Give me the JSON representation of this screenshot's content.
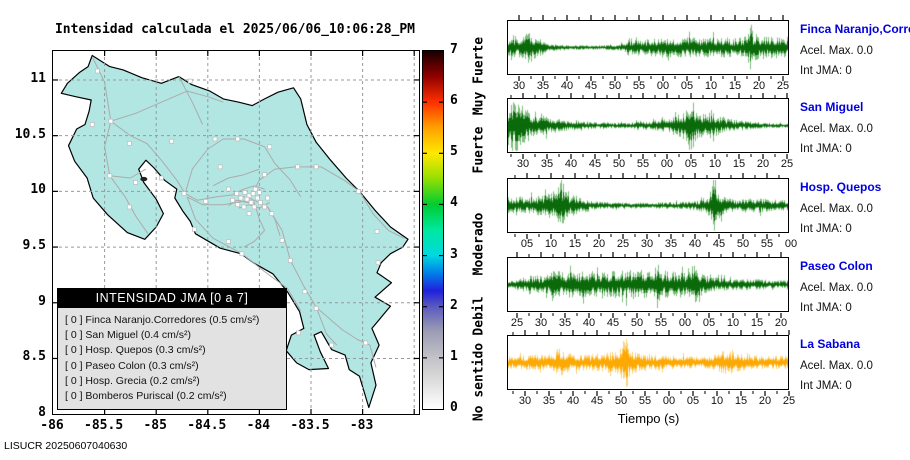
{
  "title": "Intensidad calculada el 2025/06/06_10:06:28_PM",
  "footer": "LISUCR 20250607040630",
  "map": {
    "x_ticks": [
      "-86",
      "-85.5",
      "-85",
      "-84.5",
      "-84",
      "-83.5",
      "-83"
    ],
    "y_ticks": [
      "8",
      "8.5",
      "9",
      "9.5",
      "10",
      "10.5",
      "11"
    ],
    "land_color": "#b2e6e2",
    "legend": {
      "title": "INTENSIDAD JMA [0 a 7]",
      "items": [
        "[ 0 ]  Finca Naranjo.Corredores (0.5 cm/s²)",
        "[ 0 ]  San Miguel (0.4 cm/s²)",
        "[ 0 ]  Hosp. Quepos (0.3 cm/s²)",
        "[ 0 ]  Paseo Colon (0.3 cm/s²)",
        "[ 0 ]  Hosp. Grecia (0.2 cm/s²)",
        "[ 0 ]  Bomberos Puriscal (0.2 cm/s²)"
      ]
    }
  },
  "colorbar": {
    "ticks": [
      "0",
      "1",
      "2",
      "3",
      "4",
      "5",
      "6",
      "7"
    ],
    "categories": [
      {
        "label": "No sentido",
        "value": 0.5
      },
      {
        "label": "Debil",
        "value": 1.8
      },
      {
        "label": "Moderado",
        "value": 3.2
      },
      {
        "label": "Fuerte",
        "value": 5.05
      },
      {
        "label": "Muy Fuerte",
        "value": 6.5
      }
    ]
  },
  "chart_data": {
    "type": "seismogram-panels",
    "xlabel": "Tiempo (s)",
    "map_axis": {
      "lon_range": [
        -86.0,
        -82.45
      ],
      "lat_range": [
        8.0,
        11.26
      ],
      "grid": true
    },
    "intensity_scale": {
      "min": 0,
      "max": 7
    },
    "panels": [
      {
        "station": "Finca Naranjo,Corredor",
        "accel_label": "Acel. Max. 0.0",
        "int_label": "Int JMA: 0",
        "color": "#0b6b0b",
        "color_light": "#7fbd7f",
        "seed": 101,
        "tick_offset": 12,
        "x_ticks": [
          "30",
          "35",
          "40",
          "45",
          "50",
          "55",
          "00",
          "05",
          "10",
          "15",
          "20",
          "25"
        ],
        "envelope": [
          [
            0,
            0.32
          ],
          [
            0.015,
            0.55
          ],
          [
            0.03,
            0.38
          ],
          [
            0.05,
            0.45
          ],
          [
            0.07,
            0.62
          ],
          [
            0.085,
            0.48
          ],
          [
            0.1,
            0.4
          ],
          [
            0.12,
            0.28
          ],
          [
            0.14,
            0.14
          ],
          [
            0.2,
            0.09
          ],
          [
            0.3,
            0.08
          ],
          [
            0.4,
            0.1
          ],
          [
            0.425,
            0.3
          ],
          [
            0.45,
            0.35
          ],
          [
            0.48,
            0.28
          ],
          [
            0.52,
            0.32
          ],
          [
            0.56,
            0.38
          ],
          [
            0.6,
            0.33
          ],
          [
            0.64,
            0.38
          ],
          [
            0.68,
            0.32
          ],
          [
            0.72,
            0.36
          ],
          [
            0.76,
            0.38
          ],
          [
            0.8,
            0.33
          ],
          [
            0.83,
            0.38
          ],
          [
            0.858,
            0.4
          ],
          [
            0.868,
            1.0
          ],
          [
            0.878,
            0.48
          ],
          [
            0.9,
            0.45
          ],
          [
            0.94,
            0.4
          ],
          [
            1,
            0.38
          ]
        ]
      },
      {
        "station": "San Miguel",
        "accel_label": "Acel. Max. 0.0",
        "int_label": "Int JMA: 0",
        "color": "#0b6b0b",
        "color_light": "#7fbd7f",
        "seed": 202,
        "tick_offset": 16,
        "x_ticks": [
          "30",
          "35",
          "40",
          "45",
          "50",
          "55",
          "00",
          "05",
          "10",
          "15",
          "20",
          "25"
        ],
        "envelope": [
          [
            0,
            0.7
          ],
          [
            0.01,
            1.0
          ],
          [
            0.03,
            0.92
          ],
          [
            0.05,
            0.7
          ],
          [
            0.08,
            0.5
          ],
          [
            0.11,
            0.38
          ],
          [
            0.15,
            0.28
          ],
          [
            0.2,
            0.2
          ],
          [
            0.28,
            0.14
          ],
          [
            0.36,
            0.11
          ],
          [
            0.44,
            0.1
          ],
          [
            0.47,
            0.18
          ],
          [
            0.5,
            0.12
          ],
          [
            0.54,
            0.22
          ],
          [
            0.58,
            0.3
          ],
          [
            0.61,
            0.4
          ],
          [
            0.635,
            0.55
          ],
          [
            0.655,
            1.0
          ],
          [
            0.675,
            0.5
          ],
          [
            0.7,
            0.42
          ],
          [
            0.73,
            0.45
          ],
          [
            0.76,
            0.3
          ],
          [
            0.8,
            0.22
          ],
          [
            0.85,
            0.16
          ],
          [
            0.9,
            0.12
          ],
          [
            0.95,
            0.09
          ],
          [
            1,
            0.08
          ]
        ]
      },
      {
        "station": "Hosp. Quepos",
        "accel_label": "Acel. Max. 0.0",
        "int_label": "Int JMA: 0",
        "color": "#0b6b0b",
        "color_light": "#7fbd7f",
        "seed": 303,
        "tick_offset": 20,
        "x_ticks": [
          "05",
          "10",
          "15",
          "20",
          "25",
          "30",
          "35",
          "40",
          "45",
          "50",
          "55",
          "00"
        ],
        "envelope": [
          [
            0,
            0.3
          ],
          [
            0.03,
            0.35
          ],
          [
            0.06,
            0.28
          ],
          [
            0.09,
            0.32
          ],
          [
            0.12,
            0.4
          ],
          [
            0.15,
            0.45
          ],
          [
            0.175,
            0.55
          ],
          [
            0.19,
            1.0
          ],
          [
            0.205,
            0.6
          ],
          [
            0.22,
            0.45
          ],
          [
            0.25,
            0.35
          ],
          [
            0.28,
            0.22
          ],
          [
            0.32,
            0.14
          ],
          [
            0.38,
            0.11
          ],
          [
            0.45,
            0.1
          ],
          [
            0.52,
            0.11
          ],
          [
            0.58,
            0.13
          ],
          [
            0.64,
            0.15
          ],
          [
            0.68,
            0.18
          ],
          [
            0.715,
            0.3
          ],
          [
            0.735,
            1.0
          ],
          [
            0.755,
            0.45
          ],
          [
            0.78,
            0.28
          ],
          [
            0.82,
            0.2
          ],
          [
            0.86,
            0.22
          ],
          [
            0.9,
            0.26
          ],
          [
            0.95,
            0.2
          ],
          [
            1,
            0.22
          ]
        ]
      },
      {
        "station": "Paseo Colon",
        "accel_label": "Acel. Max. 0.0",
        "int_label": "Int JMA: 0",
        "color": "#0b6b0b",
        "color_light": "#7fbd7f",
        "seed": 404,
        "tick_offset": 10,
        "x_ticks": [
          "25",
          "30",
          "35",
          "40",
          "45",
          "50",
          "55",
          "00",
          "05",
          "10",
          "15",
          "20"
        ],
        "envelope": [
          [
            0,
            0.12
          ],
          [
            0.04,
            0.22
          ],
          [
            0.08,
            0.4
          ],
          [
            0.11,
            0.3
          ],
          [
            0.14,
            0.35
          ],
          [
            0.17,
            0.55
          ],
          [
            0.2,
            0.42
          ],
          [
            0.24,
            0.5
          ],
          [
            0.28,
            0.45
          ],
          [
            0.32,
            0.48
          ],
          [
            0.36,
            0.44
          ],
          [
            0.4,
            0.5
          ],
          [
            0.44,
            0.55
          ],
          [
            0.465,
            0.68
          ],
          [
            0.49,
            0.45
          ],
          [
            0.52,
            0.5
          ],
          [
            0.535,
            0.85
          ],
          [
            0.55,
            0.5
          ],
          [
            0.59,
            0.45
          ],
          [
            0.63,
            0.48
          ],
          [
            0.665,
            0.7
          ],
          [
            0.69,
            0.4
          ],
          [
            0.73,
            0.28
          ],
          [
            0.78,
            0.22
          ],
          [
            0.84,
            0.2
          ],
          [
            0.9,
            0.18
          ],
          [
            1,
            0.14
          ]
        ]
      },
      {
        "station": "La Sabana",
        "accel_label": "Acel. Max. 0.0",
        "int_label": "Int JMA: 0",
        "color": "#fca903",
        "color_light": "#fdd27c",
        "seed": 505,
        "tick_offset": 18,
        "x_ticks": [
          "30",
          "35",
          "40",
          "45",
          "50",
          "55",
          "00",
          "05",
          "10",
          "15",
          "20",
          "25"
        ],
        "envelope": [
          [
            0,
            0.22
          ],
          [
            0.05,
            0.24
          ],
          [
            0.09,
            0.28
          ],
          [
            0.13,
            0.26
          ],
          [
            0.165,
            0.35
          ],
          [
            0.18,
            0.72
          ],
          [
            0.195,
            0.4
          ],
          [
            0.23,
            0.3
          ],
          [
            0.28,
            0.28
          ],
          [
            0.33,
            0.32
          ],
          [
            0.37,
            0.38
          ],
          [
            0.4,
            0.45
          ],
          [
            0.42,
            1.0
          ],
          [
            0.44,
            0.45
          ],
          [
            0.47,
            0.32
          ],
          [
            0.51,
            0.28
          ],
          [
            0.55,
            0.26
          ],
          [
            0.6,
            0.24
          ],
          [
            0.65,
            0.22
          ],
          [
            0.7,
            0.2
          ],
          [
            0.74,
            0.28
          ],
          [
            0.77,
            0.45
          ],
          [
            0.8,
            0.38
          ],
          [
            0.84,
            0.28
          ],
          [
            0.89,
            0.24
          ],
          [
            0.94,
            0.22
          ],
          [
            1,
            0.26
          ]
        ]
      }
    ]
  }
}
